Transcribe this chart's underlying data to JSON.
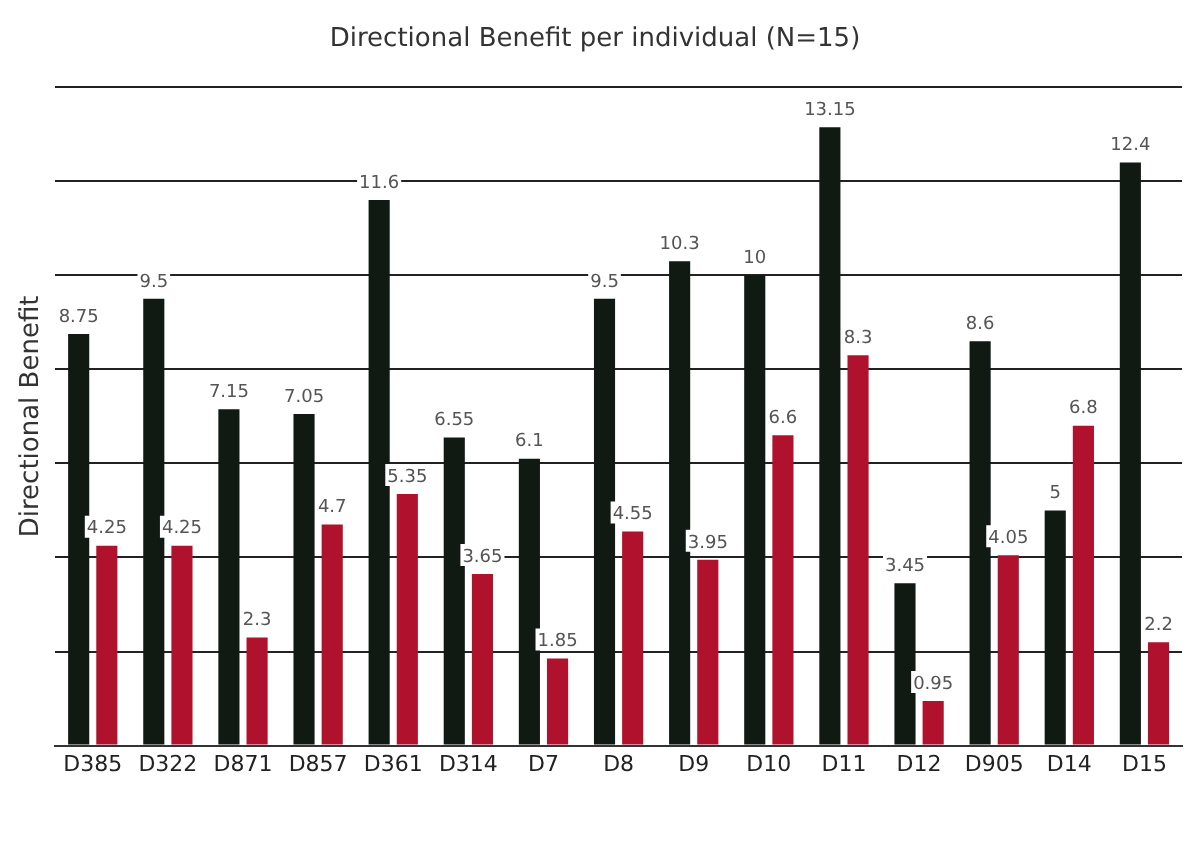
{
  "chart_data": {
    "type": "bar",
    "title": "Directional Benefit per individual (N=15)",
    "ylabel": "Directional Benefit",
    "categories": [
      "D385",
      "D322",
      "D871",
      "D857",
      "D361",
      "D314",
      "D7",
      "D8",
      "D9",
      "D10",
      "D11",
      "D12",
      "D905",
      "D14",
      "D15"
    ],
    "series": [
      {
        "color": "#111a12",
        "values": [
          8.75,
          9.5,
          7.15,
          7.05,
          11.6,
          6.55,
          6.1,
          9.5,
          10.3,
          10,
          13.15,
          3.45,
          8.6,
          5,
          12.4
        ]
      },
      {
        "color": "#b0122e",
        "values": [
          4.25,
          4.25,
          2.3,
          4.7,
          5.35,
          3.65,
          1.85,
          4.55,
          3.95,
          6.6,
          8.3,
          0.95,
          4.05,
          6.8,
          2.2
        ]
      }
    ],
    "ylim": [
      0,
      14
    ],
    "yticks": [
      {
        "value": 0,
        "label": null
      },
      {
        "value": 2,
        "label": null
      },
      {
        "value": 4,
        "label": null
      },
      {
        "value": 6,
        "label": null
      },
      {
        "value": 8,
        "label": null
      },
      {
        "value": 10,
        "label": null
      },
      {
        "value": 12,
        "label": null
      },
      {
        "value": 14,
        "label": null
      }
    ],
    "grid": "y",
    "tick_labels": "x",
    "data_labels": true,
    "legend": false
  }
}
